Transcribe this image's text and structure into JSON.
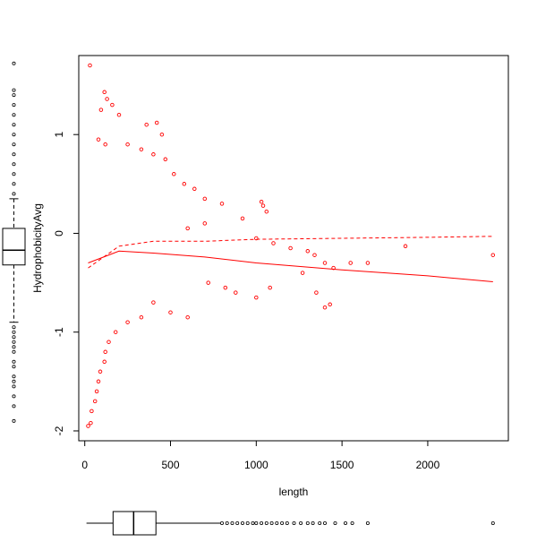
{
  "chart_data": {
    "type": "scatter",
    "title": "",
    "xlabel": "length",
    "ylabel": "HydrophobicityAvg",
    "xlim": [
      -35,
      2470
    ],
    "ylim": [
      -2.1,
      1.8
    ],
    "xticks": [
      0,
      500,
      1000,
      1500,
      2000
    ],
    "yticks": [
      -2,
      -1,
      0,
      1
    ],
    "ytick_labels": [
      "-2",
      "-1",
      "0",
      "1"
    ],
    "grid": false,
    "legend": "none",
    "point_color": "#ff0000",
    "points_estimated": [
      [
        30,
        1.7
      ],
      [
        115,
        1.43
      ],
      [
        130,
        1.36
      ],
      [
        160,
        1.3
      ],
      [
        95,
        1.25
      ],
      [
        200,
        1.2
      ],
      [
        360,
        1.1
      ],
      [
        420,
        1.12
      ],
      [
        450,
        1.0
      ],
      [
        80,
        0.95
      ],
      [
        120,
        0.9
      ],
      [
        250,
        0.9
      ],
      [
        330,
        0.85
      ],
      [
        400,
        0.8
      ],
      [
        470,
        0.75
      ],
      [
        520,
        0.6
      ],
      [
        580,
        0.5
      ],
      [
        640,
        0.45
      ],
      [
        700,
        0.35
      ],
      [
        800,
        0.3
      ],
      [
        1030,
        0.32
      ],
      [
        1040,
        0.28
      ],
      [
        1060,
        0.22
      ],
      [
        920,
        0.15
      ],
      [
        700,
        0.1
      ],
      [
        600,
        0.05
      ],
      [
        1000,
        -0.05
      ],
      [
        1100,
        -0.1
      ],
      [
        1200,
        -0.15
      ],
      [
        1300,
        -0.18
      ],
      [
        1400,
        -0.3
      ],
      [
        1450,
        -0.35
      ],
      [
        1550,
        -0.3
      ],
      [
        1650,
        -0.3
      ],
      [
        1870,
        -0.13
      ],
      [
        1350,
        -0.6
      ],
      [
        1400,
        -0.75
      ],
      [
        1430,
        -0.72
      ],
      [
        1340,
        -0.22
      ],
      [
        1270,
        -0.4
      ],
      [
        1080,
        -0.55
      ],
      [
        1000,
        -0.65
      ],
      [
        880,
        -0.6
      ],
      [
        820,
        -0.55
      ],
      [
        720,
        -0.5
      ],
      [
        600,
        -0.85
      ],
      [
        500,
        -0.8
      ],
      [
        400,
        -0.7
      ],
      [
        330,
        -0.85
      ],
      [
        250,
        -0.9
      ],
      [
        180,
        -1.0
      ],
      [
        140,
        -1.1
      ],
      [
        120,
        -1.2
      ],
      [
        115,
        -1.3
      ],
      [
        90,
        -1.4
      ],
      [
        80,
        -1.5
      ],
      [
        70,
        -1.6
      ],
      [
        60,
        -1.7
      ],
      [
        40,
        -1.8
      ],
      [
        35,
        -1.92
      ],
      [
        20,
        -1.95
      ],
      [
        2380,
        -0.22
      ]
    ],
    "trend_solid": [
      [
        20,
        -0.3
      ],
      [
        200,
        -0.18
      ],
      [
        400,
        -0.2
      ],
      [
        700,
        -0.24
      ],
      [
        1000,
        -0.3
      ],
      [
        1500,
        -0.37
      ],
      [
        2000,
        -0.43
      ],
      [
        2380,
        -0.49
      ]
    ],
    "trend_dashed": [
      [
        20,
        -0.35
      ],
      [
        200,
        -0.13
      ],
      [
        400,
        -0.08
      ],
      [
        700,
        -0.08
      ],
      [
        1000,
        -0.06
      ],
      [
        1500,
        -0.05
      ],
      [
        2000,
        -0.04
      ],
      [
        2380,
        -0.03
      ]
    ],
    "side_boxplot_y": {
      "min": -0.9,
      "q1": -0.32,
      "median": -0.17,
      "q3": 0.05,
      "max": 0.35,
      "outliers_estimated": [
        -0.95,
        -1.0,
        -1.05,
        -1.1,
        -1.15,
        -1.2,
        -1.3,
        -1.35,
        -1.45,
        -1.5,
        -1.55,
        -1.65,
        -1.75,
        -1.9,
        0.4,
        0.5,
        0.6,
        0.7,
        0.8,
        0.9,
        1.0,
        1.1,
        1.2,
        1.3,
        1.4,
        1.45,
        1.72
      ]
    },
    "bottom_boxplot_x": {
      "min": 10,
      "q1": 165,
      "median": 285,
      "q3": 415,
      "max": 790,
      "outliers_estimated": [
        800,
        830,
        860,
        890,
        920,
        950,
        980,
        1000,
        1030,
        1060,
        1090,
        1120,
        1150,
        1180,
        1220,
        1260,
        1300,
        1330,
        1370,
        1400,
        1460,
        1520,
        1560,
        1650,
        2380
      ]
    }
  }
}
